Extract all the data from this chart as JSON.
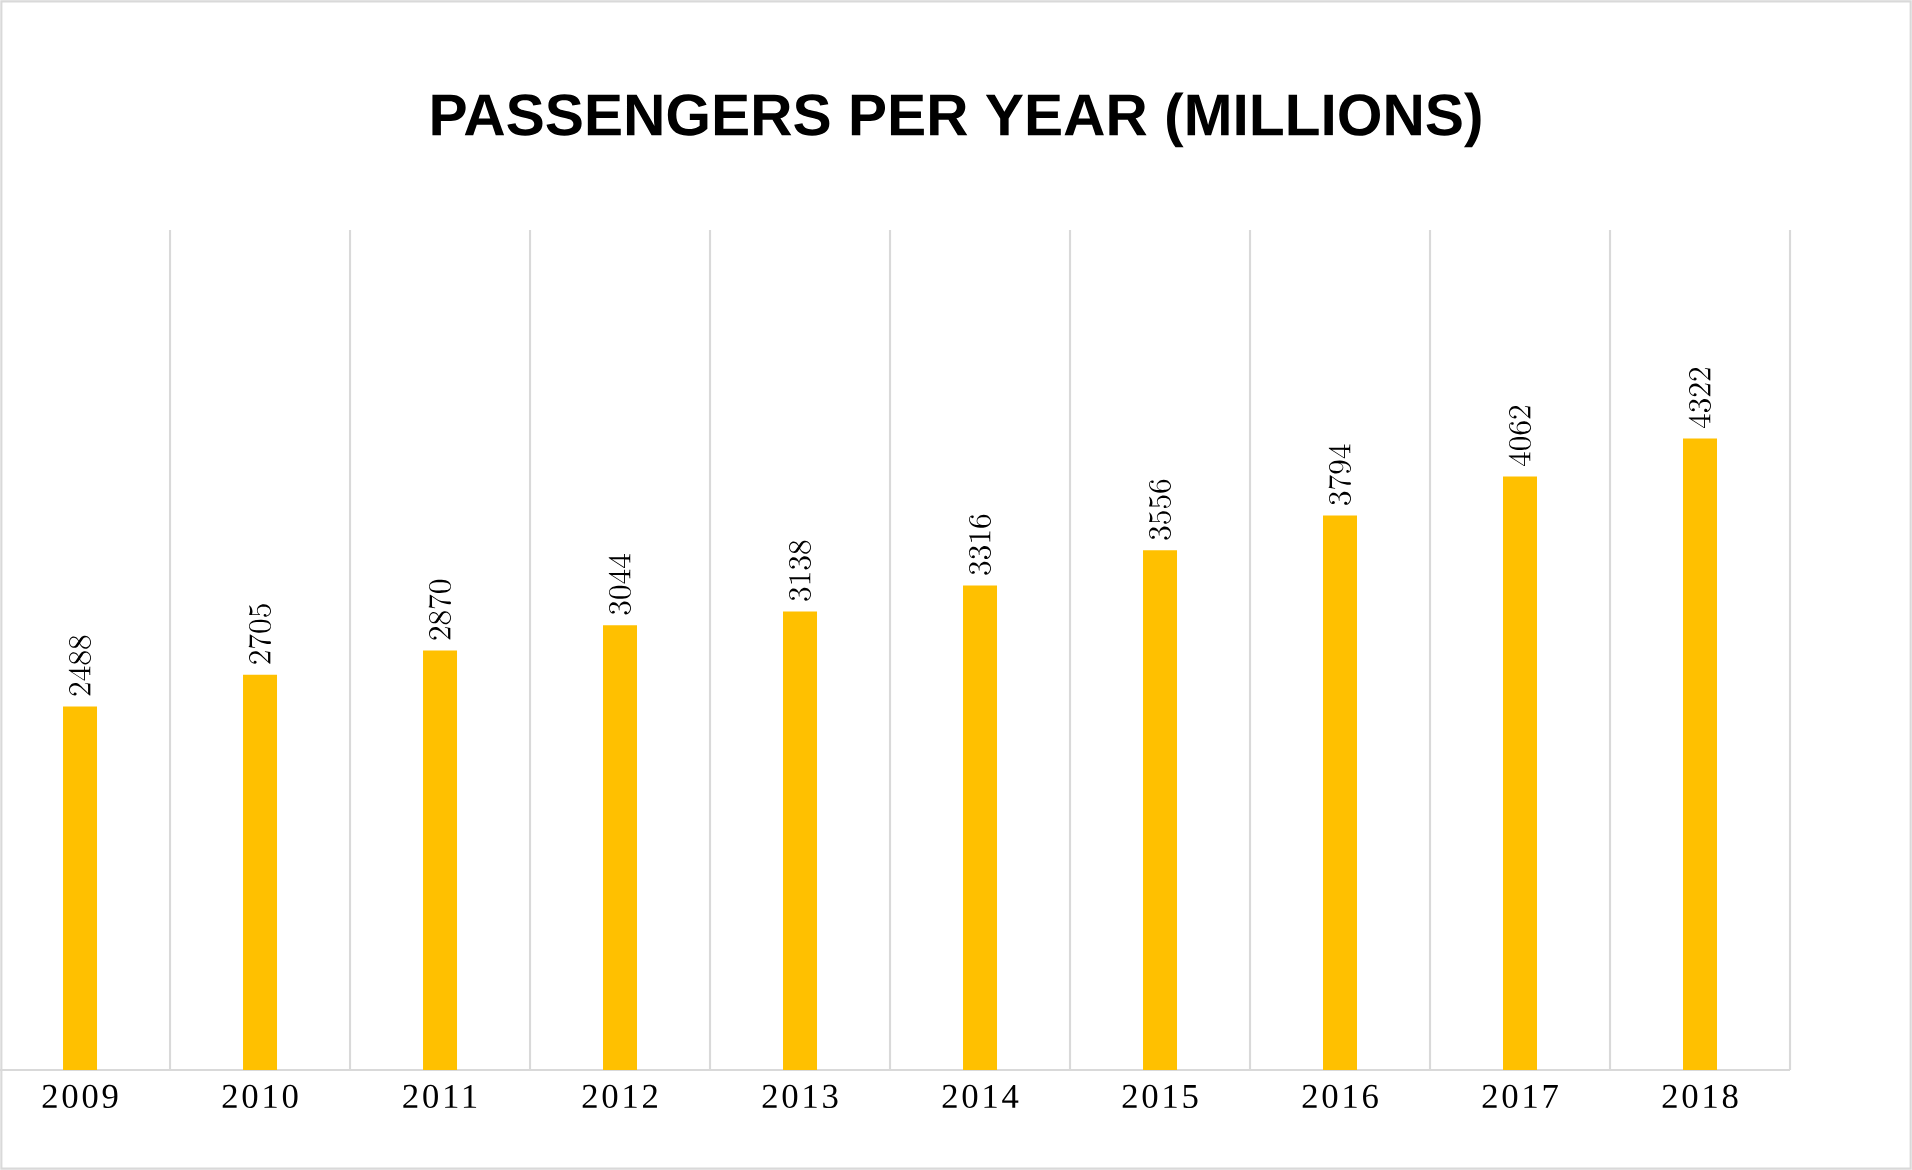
{
  "chart_data": {
    "type": "bar",
    "title": "PASSENGERS PER YEAR (MILLIONS)",
    "categories": [
      "2009",
      "2010",
      "2011",
      "2012",
      "2013",
      "2014",
      "2015",
      "2016",
      "2017",
      "2018"
    ],
    "values": [
      2488,
      2705,
      2870,
      3044,
      3138,
      3316,
      3556,
      3794,
      4062,
      4322
    ],
    "color": "#ffc000",
    "data_labels": true,
    "grid": "x"
  }
}
